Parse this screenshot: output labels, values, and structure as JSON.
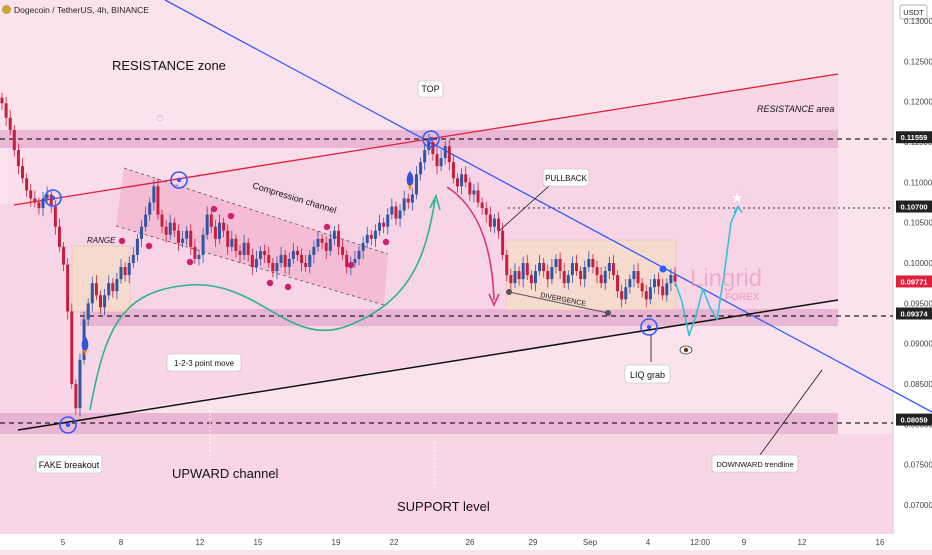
{
  "header": {
    "symbol": "Dogecoin / TetherUS, 4h, BINANCE",
    "currency": "USDT"
  },
  "annotations": {
    "resistance_zone": "RESISTANCE zone",
    "resistance_area": "RESISTANCE area",
    "top": "TOP",
    "pullback": "PULLBACK",
    "compression_channel": "Compression channel",
    "range": "RANGE",
    "divergence": "DIVERGENCE",
    "point_move": "1-2-3 point move",
    "liq_grab": "LIQ grab",
    "fake_breakout": "FAKE breakout",
    "upward_channel": "UPWARD channel",
    "support_level": "SUPPORT level",
    "downward_trendline": "DOWNWARD trendline"
  },
  "watermark": {
    "brand": "Lingrid",
    "sub": "FOREX"
  },
  "colors": {
    "background": "#fbe3ee",
    "zone": "#e7b0d0",
    "up_candle": "#2f56a6",
    "down_candle": "#c81e3e",
    "trend_blue": "#2f5cff",
    "trend_red": "#e0203a",
    "marker_blue": "#2f5cff",
    "marker_pink": "#d21f6d",
    "projection": "#35c2d6",
    "price_tag_red": "#e0203a",
    "price_tag_dark": "#222222"
  },
  "chart_data": {
    "type": "candlestick",
    "title": "Dogecoin / TetherUS, 4h, BINANCE",
    "y_unit": "USDT",
    "ylim": [
      0.0677,
      0.1315
    ],
    "y_ticks": [
      "0.13000",
      "0.12500",
      "0.12000",
      "0.11500",
      "0.11000",
      "0.10500",
      "0.10000",
      "0.09500",
      "0.09000",
      "0.08500",
      "0.08000",
      "0.07500",
      "0.07000"
    ],
    "x_ticks": [
      "5",
      "8",
      "12",
      "15",
      "19",
      "22",
      "26",
      "29",
      "Sep",
      "4",
      "12:00",
      "9",
      "12",
      "16"
    ],
    "price_levels": [
      {
        "label": "0.11559",
        "value": 0.11559,
        "style": "dashed",
        "tag": "dark"
      },
      {
        "label": "0.10700",
        "value": 0.107,
        "style": "dotted",
        "tag": "dark"
      },
      {
        "label": "0.09771",
        "value": 0.09771,
        "style": "none",
        "tag": "red"
      },
      {
        "label": "0.09374",
        "value": 0.09374,
        "style": "dashed",
        "tag": "dark"
      },
      {
        "label": "0.08059",
        "value": 0.08059,
        "style": "dashed",
        "tag": "dark"
      }
    ],
    "zones": [
      {
        "name": "RESISTANCE area",
        "from": 0.1148,
        "to": 0.1163
      },
      {
        "name": "support band",
        "from": 0.0932,
        "to": 0.0948
      },
      {
        "name": "SUPPORT level",
        "from": 0.0797,
        "to": 0.0818
      }
    ],
    "closes": [
      0.1198,
      0.118,
      0.1165,
      0.114,
      0.112,
      0.1105,
      0.109,
      0.108,
      0.1075,
      0.1068,
      0.108,
      0.1085,
      0.107,
      0.1045,
      0.102,
      0.0998,
      0.094,
      0.085,
      0.082,
      0.088,
      0.093,
      0.095,
      0.0975,
      0.096,
      0.0945,
      0.096,
      0.0975,
      0.0965,
      0.098,
      0.0995,
      0.0985,
      0.1,
      0.101,
      0.103,
      0.1045,
      0.106,
      0.1075,
      0.1095,
      0.106,
      0.1045,
      0.1035,
      0.105,
      0.104,
      0.1025,
      0.103,
      0.104,
      0.102,
      0.1005,
      0.101,
      0.1035,
      0.106,
      0.1045,
      0.103,
      0.105,
      0.104,
      0.102,
      0.103,
      0.1015,
      0.101,
      0.1025,
      0.101,
      0.0995,
      0.1005,
      0.1015,
      0.101,
      0.1,
      0.099,
      0.1,
      0.101,
      0.0995,
      0.1005,
      0.1015,
      0.101,
      0.1,
      0.0995,
      0.101,
      0.102,
      0.103,
      0.1025,
      0.1015,
      0.103,
      0.104,
      0.102,
      0.101,
      0.0995,
      0.1,
      0.1005,
      0.1015,
      0.1025,
      0.1035,
      0.103,
      0.104,
      0.105,
      0.1045,
      0.106,
      0.107,
      0.1055,
      0.1065,
      0.108,
      0.1075,
      0.1085,
      0.111,
      0.1125,
      0.114,
      0.115,
      0.1135,
      0.112,
      0.113,
      0.1145,
      0.1125,
      0.1105,
      0.1095,
      0.111,
      0.11,
      0.1085,
      0.109,
      0.1075,
      0.1068,
      0.106,
      0.1045,
      0.1055,
      0.104,
      0.101,
      0.0985,
      0.0975,
      0.099,
      0.098,
      0.1,
      0.0985,
      0.0975,
      0.099,
      0.1,
      0.099,
      0.098,
      0.0995,
      0.1005,
      0.099,
      0.0975,
      0.0985,
      0.1,
      0.099,
      0.098,
      0.0995,
      0.1005,
      0.0995,
      0.0985,
      0.0975,
      0.099,
      0.1,
      0.0985,
      0.0965,
      0.0955,
      0.097,
      0.098,
      0.099,
      0.0975,
      0.0965,
      0.0955,
      0.097,
      0.098,
      0.0971,
      0.096,
      0.0975,
      0.0985,
      0.0977
    ],
    "projection": [
      0.0977,
      0.0952,
      0.091,
      0.0935,
      0.0968,
      0.0945,
      0.093,
      0.0985,
      0.105,
      0.107
    ],
    "trendlines": [
      {
        "name": "DOWNWARD trendline",
        "color": "blue"
      },
      {
        "name": "upper channel line",
        "color": "red"
      },
      {
        "name": "UPWARD channel",
        "color": "black"
      }
    ]
  }
}
